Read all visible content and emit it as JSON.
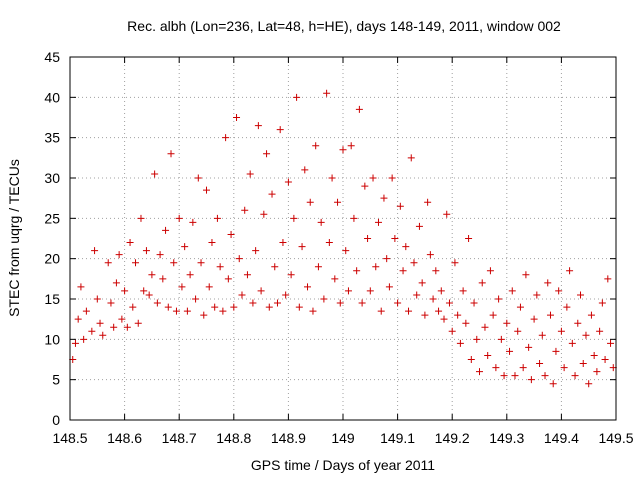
{
  "chart_data": {
    "type": "scatter",
    "title": "Rec. albh (Lon=236, Lat=48, h=HE), days 148-149, 2011, window 002",
    "xlabel": "GPS time / Days of year 2011",
    "ylabel": "STEC from uqrg / TECUs",
    "xlim": [
      148.5,
      149.5
    ],
    "ylim": [
      0,
      45
    ],
    "x_ticks": [
      148.5,
      148.6,
      148.7,
      148.8,
      148.9,
      149,
      149.1,
      149.2,
      149.3,
      149.4,
      149.5
    ],
    "x_tick_labels": [
      "148.5",
      "148.6",
      "148.7",
      "148.8",
      "148.9",
      "149",
      "149.1",
      "149.2",
      "149.3",
      "149.4",
      "149.5"
    ],
    "y_ticks": [
      0,
      5,
      10,
      15,
      20,
      25,
      30,
      35,
      40,
      45
    ],
    "y_tick_labels": [
      "0",
      "5",
      "10",
      "15",
      "20",
      "25",
      "30",
      "35",
      "40",
      "45"
    ],
    "grid": true,
    "marker": "+",
    "color": "#cc0000",
    "series": [
      {
        "points": [
          [
            148.505,
            7.5
          ],
          [
            148.51,
            9.5
          ],
          [
            148.515,
            12.5
          ],
          [
            148.52,
            16.5
          ],
          [
            148.525,
            10.0
          ],
          [
            148.53,
            13.5
          ],
          [
            148.54,
            11.0
          ],
          [
            148.545,
            21.0
          ],
          [
            148.55,
            15.0
          ],
          [
            148.555,
            12.0
          ],
          [
            148.56,
            10.5
          ],
          [
            148.57,
            19.5
          ],
          [
            148.575,
            14.5
          ],
          [
            148.58,
            11.5
          ],
          [
            148.585,
            17.0
          ],
          [
            148.59,
            20.5
          ],
          [
            148.595,
            12.5
          ],
          [
            148.6,
            16.0
          ],
          [
            148.605,
            11.5
          ],
          [
            148.61,
            22.0
          ],
          [
            148.615,
            14.0
          ],
          [
            148.62,
            19.5
          ],
          [
            148.625,
            12.0
          ],
          [
            148.63,
            25.0
          ],
          [
            148.635,
            16.0
          ],
          [
            148.64,
            21.0
          ],
          [
            148.645,
            15.5
          ],
          [
            148.65,
            18.0
          ],
          [
            148.655,
            30.5
          ],
          [
            148.66,
            14.5
          ],
          [
            148.665,
            20.5
          ],
          [
            148.67,
            17.5
          ],
          [
            148.675,
            23.5
          ],
          [
            148.68,
            14.0
          ],
          [
            148.685,
            33.0
          ],
          [
            148.69,
            19.5
          ],
          [
            148.695,
            13.5
          ],
          [
            148.7,
            25.0
          ],
          [
            148.705,
            16.5
          ],
          [
            148.71,
            21.5
          ],
          [
            148.715,
            13.5
          ],
          [
            148.72,
            18.0
          ],
          [
            148.725,
            24.5
          ],
          [
            148.73,
            15.0
          ],
          [
            148.735,
            30.0
          ],
          [
            148.74,
            19.5
          ],
          [
            148.745,
            13.0
          ],
          [
            148.75,
            28.5
          ],
          [
            148.755,
            16.5
          ],
          [
            148.76,
            22.0
          ],
          [
            148.765,
            14.0
          ],
          [
            148.77,
            25.0
          ],
          [
            148.775,
            19.0
          ],
          [
            148.78,
            13.5
          ],
          [
            148.785,
            35.0
          ],
          [
            148.79,
            17.5
          ],
          [
            148.795,
            23.0
          ],
          [
            148.8,
            14.0
          ],
          [
            148.805,
            37.5
          ],
          [
            148.81,
            20.0
          ],
          [
            148.815,
            15.5
          ],
          [
            148.82,
            26.0
          ],
          [
            148.825,
            18.0
          ],
          [
            148.83,
            30.5
          ],
          [
            148.835,
            14.5
          ],
          [
            148.84,
            21.0
          ],
          [
            148.845,
            36.5
          ],
          [
            148.85,
            16.0
          ],
          [
            148.855,
            25.5
          ],
          [
            148.86,
            33.0
          ],
          [
            148.865,
            14.0
          ],
          [
            148.87,
            28.0
          ],
          [
            148.875,
            19.0
          ],
          [
            148.88,
            14.5
          ],
          [
            148.885,
            36.0
          ],
          [
            148.89,
            22.0
          ],
          [
            148.895,
            15.5
          ],
          [
            148.9,
            29.5
          ],
          [
            148.905,
            18.0
          ],
          [
            148.91,
            25.0
          ],
          [
            148.915,
            40.0
          ],
          [
            148.92,
            14.0
          ],
          [
            148.925,
            21.5
          ],
          [
            148.93,
            31.0
          ],
          [
            148.935,
            16.5
          ],
          [
            148.94,
            27.0
          ],
          [
            148.945,
            13.5
          ],
          [
            148.95,
            34.0
          ],
          [
            148.955,
            19.0
          ],
          [
            148.96,
            24.5
          ],
          [
            148.965,
            15.0
          ],
          [
            148.97,
            40.5
          ],
          [
            148.975,
            22.0
          ],
          [
            148.98,
            30.0
          ],
          [
            148.985,
            17.5
          ],
          [
            148.99,
            27.0
          ],
          [
            148.995,
            14.5
          ],
          [
            149.0,
            33.5
          ],
          [
            149.005,
            21.0
          ],
          [
            149.01,
            16.0
          ],
          [
            149.015,
            34.0
          ],
          [
            149.02,
            25.0
          ],
          [
            149.025,
            18.5
          ],
          [
            149.03,
            38.5
          ],
          [
            149.035,
            14.5
          ],
          [
            149.04,
            29.0
          ],
          [
            149.045,
            22.5
          ],
          [
            149.05,
            16.0
          ],
          [
            149.055,
            30.0
          ],
          [
            149.06,
            19.0
          ],
          [
            149.065,
            24.5
          ],
          [
            149.07,
            13.5
          ],
          [
            149.075,
            27.5
          ],
          [
            149.08,
            20.0
          ],
          [
            149.085,
            16.5
          ],
          [
            149.09,
            30.0
          ],
          [
            149.095,
            22.5
          ],
          [
            149.1,
            14.5
          ],
          [
            149.105,
            26.5
          ],
          [
            149.11,
            18.5
          ],
          [
            149.115,
            21.5
          ],
          [
            149.12,
            13.5
          ],
          [
            149.125,
            32.5
          ],
          [
            149.13,
            19.5
          ],
          [
            149.135,
            15.5
          ],
          [
            149.14,
            24.0
          ],
          [
            149.145,
            17.0
          ],
          [
            149.15,
            13.0
          ],
          [
            149.155,
            27.0
          ],
          [
            149.16,
            20.5
          ],
          [
            149.165,
            15.0
          ],
          [
            149.17,
            18.5
          ],
          [
            149.175,
            13.5
          ],
          [
            149.18,
            16.0
          ],
          [
            149.185,
            12.5
          ],
          [
            149.19,
            25.5
          ],
          [
            149.195,
            14.5
          ],
          [
            149.2,
            11.0
          ],
          [
            149.205,
            19.5
          ],
          [
            149.21,
            13.0
          ],
          [
            149.215,
            9.5
          ],
          [
            149.22,
            16.0
          ],
          [
            149.225,
            12.0
          ],
          [
            149.23,
            22.5
          ],
          [
            149.235,
            7.5
          ],
          [
            149.24,
            14.5
          ],
          [
            149.245,
            10.0
          ],
          [
            149.25,
            6.0
          ],
          [
            149.255,
            17.0
          ],
          [
            149.26,
            11.5
          ],
          [
            149.265,
            8.0
          ],
          [
            149.27,
            18.5
          ],
          [
            149.275,
            13.0
          ],
          [
            149.28,
            6.5
          ],
          [
            149.285,
            15.0
          ],
          [
            149.29,
            10.0
          ],
          [
            149.295,
            5.5
          ],
          [
            149.3,
            12.0
          ],
          [
            149.305,
            8.5
          ],
          [
            149.31,
            16.0
          ],
          [
            149.315,
            5.5
          ],
          [
            149.32,
            11.0
          ],
          [
            149.325,
            14.0
          ],
          [
            149.33,
            6.5
          ],
          [
            149.335,
            18.0
          ],
          [
            149.34,
            9.0
          ],
          [
            149.345,
            5.0
          ],
          [
            149.35,
            12.5
          ],
          [
            149.355,
            15.5
          ],
          [
            149.36,
            7.0
          ],
          [
            149.365,
            10.5
          ],
          [
            149.37,
            5.5
          ],
          [
            149.375,
            17.0
          ],
          [
            149.38,
            13.0
          ],
          [
            149.385,
            4.5
          ],
          [
            149.39,
            8.5
          ],
          [
            149.395,
            16.0
          ],
          [
            149.4,
            11.0
          ],
          [
            149.405,
            6.5
          ],
          [
            149.41,
            14.0
          ],
          [
            149.415,
            18.5
          ],
          [
            149.42,
            9.5
          ],
          [
            149.425,
            5.5
          ],
          [
            149.43,
            12.0
          ],
          [
            149.435,
            15.5
          ],
          [
            149.44,
            7.0
          ],
          [
            149.445,
            10.5
          ],
          [
            149.45,
            4.5
          ],
          [
            149.455,
            13.0
          ],
          [
            149.46,
            8.0
          ],
          [
            149.465,
            6.0
          ],
          [
            149.47,
            11.0
          ],
          [
            149.475,
            14.5
          ],
          [
            149.48,
            7.5
          ],
          [
            149.485,
            17.5
          ],
          [
            149.49,
            9.5
          ],
          [
            149.495,
            6.5
          ]
        ]
      }
    ]
  }
}
